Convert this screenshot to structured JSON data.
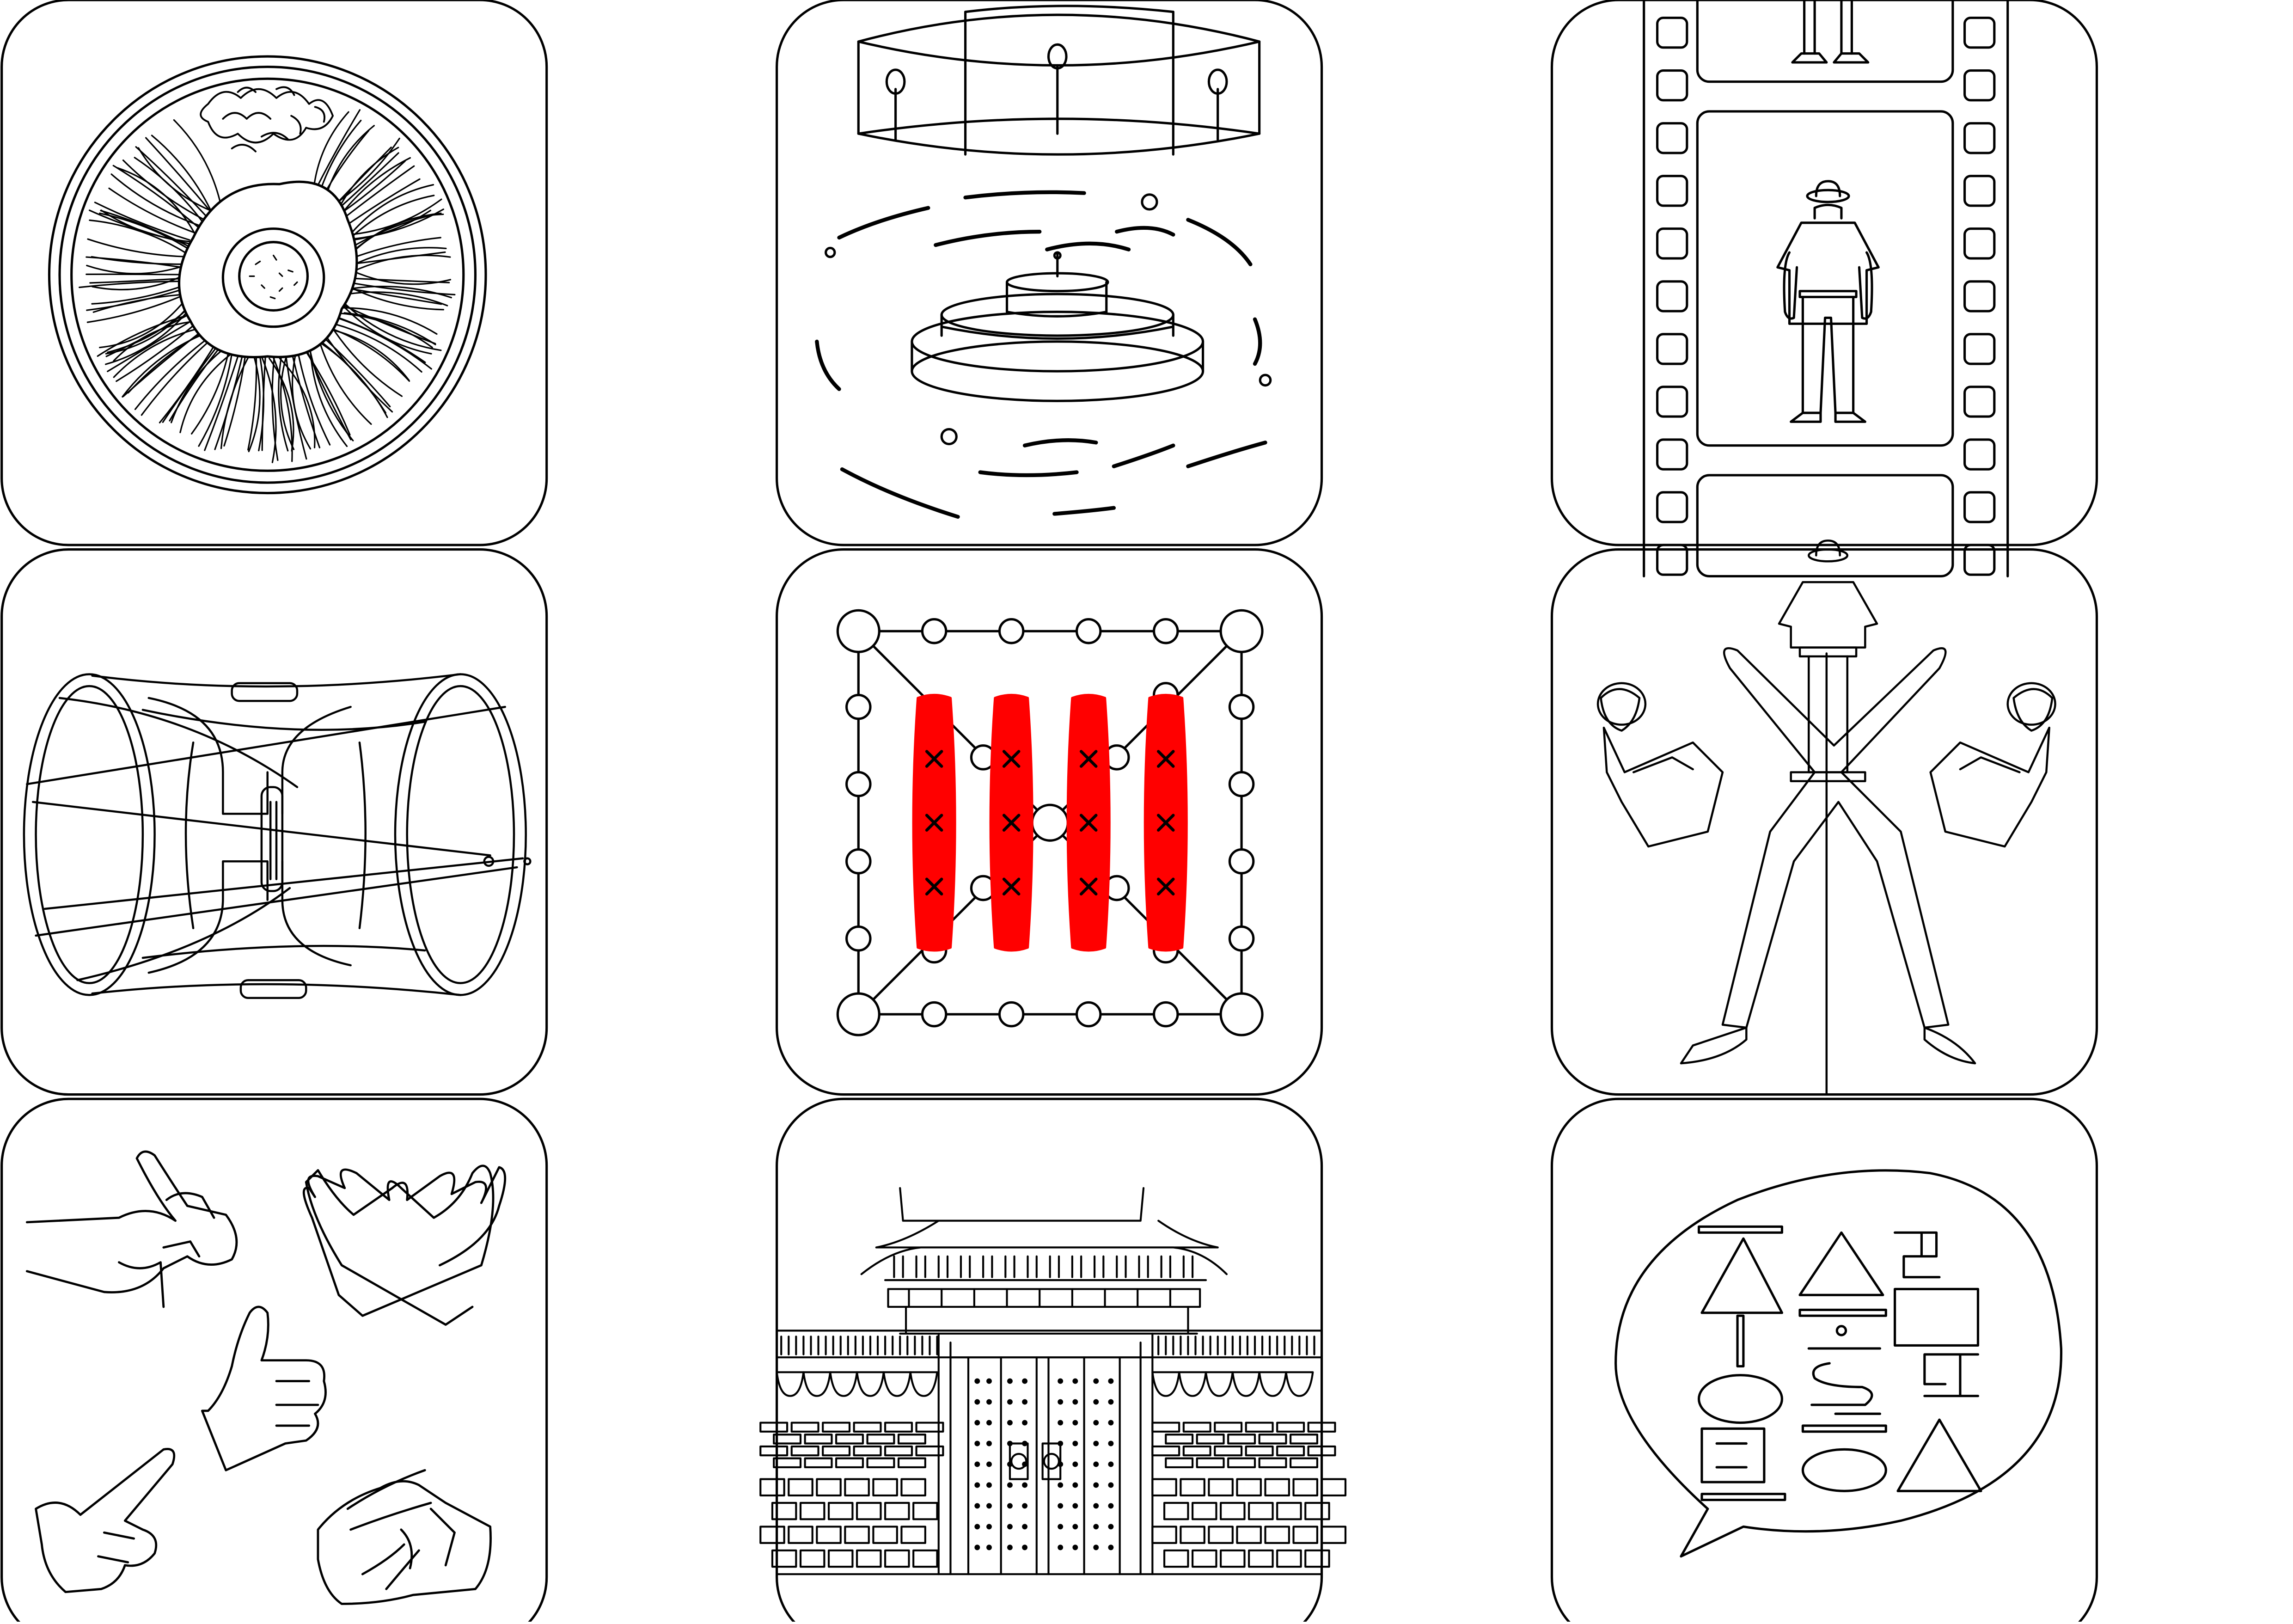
{
  "artwork": {
    "colors": {
      "line": "#000000",
      "background": "#ffffff",
      "accent": "#ff0000"
    },
    "tiles": [
      {
        "id": "bibimbap-bowl-tile",
        "icon": "bibimbap-bowl-icon"
      },
      {
        "id": "pansori-stage-tile",
        "icon": "stage-performance-icon"
      },
      {
        "id": "film-strip-tile",
        "icon": "film-strip-figure-icon"
      },
      {
        "id": "janggu-drum-tile",
        "icon": "janggu-drum-icon"
      },
      {
        "id": "hall-floor-plan-tile",
        "icon": "floor-plan-icon"
      },
      {
        "id": "taekwondo-kick-tile",
        "icon": "taekwondo-kick-icon"
      },
      {
        "id": "hand-gestures-tile",
        "icon": "hand-gestures-icon"
      },
      {
        "id": "palace-gate-tile",
        "icon": "palace-gate-icon"
      },
      {
        "id": "hangul-speech-bubble-tile",
        "icon": "hangul-speech-bubble-icon"
      }
    ]
  }
}
